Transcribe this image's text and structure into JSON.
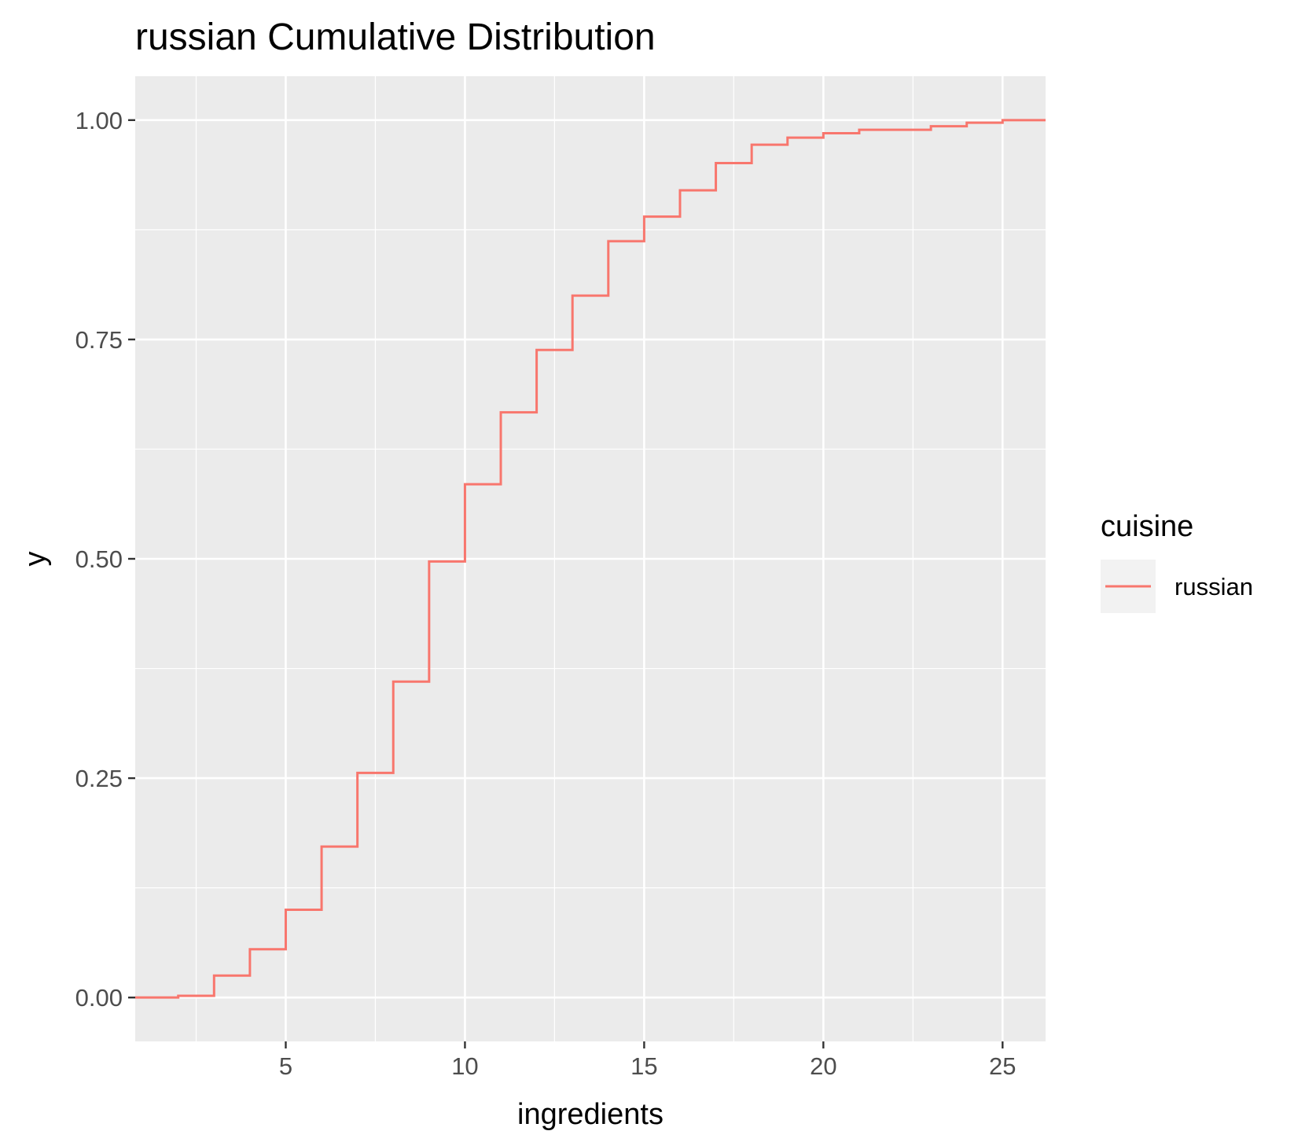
{
  "chart_data": {
    "type": "line",
    "step": true,
    "title": "russian Cumulative Distribution",
    "xlabel": "ingredients",
    "ylabel": "y",
    "xlim": [
      0.8,
      26.2
    ],
    "ylim": [
      -0.05,
      1.05
    ],
    "x_ticks": [
      5,
      10,
      15,
      20,
      25
    ],
    "x_tick_labels": [
      "5",
      "10",
      "15",
      "20",
      "25"
    ],
    "y_ticks": [
      0,
      0.25,
      0.5,
      0.75,
      1.0
    ],
    "y_tick_labels": [
      "0.00",
      "0.25",
      "0.50",
      "0.75",
      "1.00"
    ],
    "grid": true,
    "legend": {
      "title": "cuisine",
      "position": "right"
    },
    "series": [
      {
        "name": "russian",
        "color": "#F8766D",
        "x": [
          1,
          2,
          3,
          4,
          5,
          6,
          7,
          8,
          9,
          10,
          11,
          12,
          13,
          14,
          15,
          16,
          17,
          18,
          19,
          20,
          21,
          22,
          23,
          24,
          25,
          26
        ],
        "y": [
          0.0,
          0.002,
          0.025,
          0.055,
          0.1,
          0.172,
          0.256,
          0.36,
          0.497,
          0.585,
          0.667,
          0.738,
          0.8,
          0.862,
          0.89,
          0.92,
          0.951,
          0.972,
          0.98,
          0.985,
          0.989,
          0.989,
          0.993,
          0.997,
          1.0,
          1.0
        ]
      }
    ]
  }
}
